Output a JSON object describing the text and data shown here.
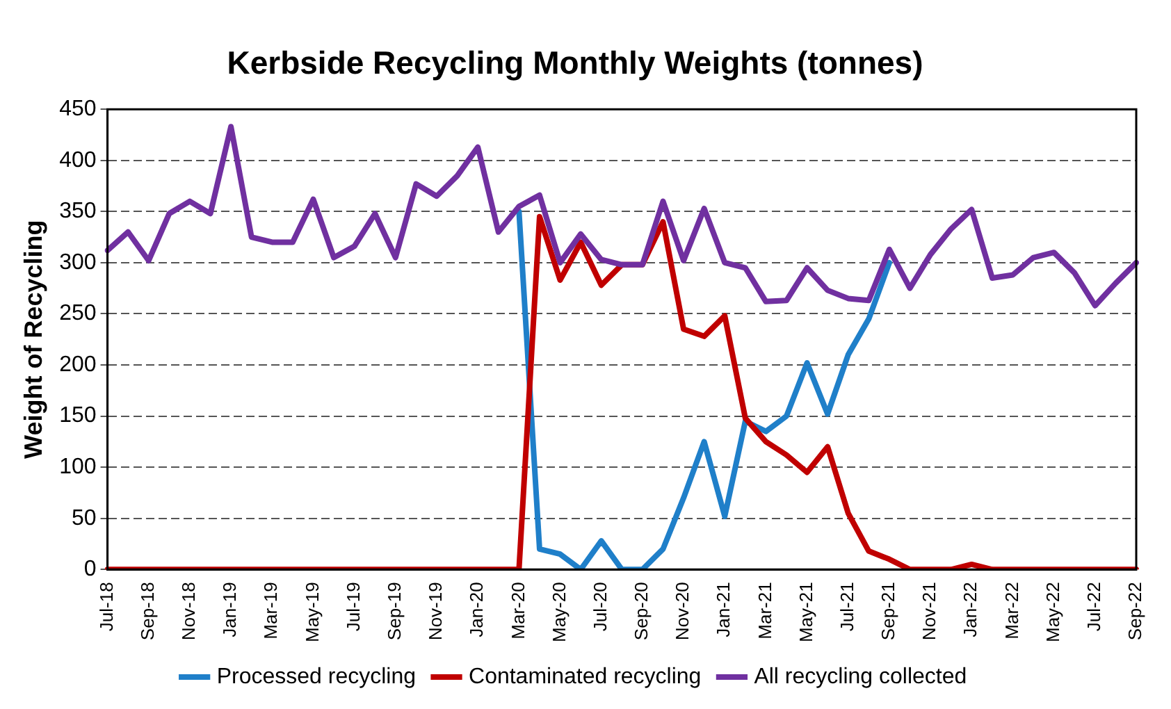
{
  "chart_data": {
    "type": "line",
    "title": "Kerbside Recycling Monthly Weights (tonnes)",
    "ylabel": "Weight of Recycling",
    "categories": [
      "Jul-18",
      null,
      "Sep-18",
      null,
      "Nov-18",
      null,
      "Jan-19",
      null,
      "Mar-19",
      null,
      "May-19",
      null,
      "Jul-19",
      null,
      "Sep-19",
      null,
      "Nov-19",
      null,
      "Jan-20",
      null,
      "Mar-20",
      null,
      "May-20",
      null,
      "Jul-20",
      null,
      "Sep-20",
      null,
      "Nov-20",
      null,
      "Jan-21",
      null,
      "Mar-21",
      null,
      "May-21",
      null,
      "Jul-21",
      null,
      "Sep-21",
      null,
      "Nov-21",
      null,
      "Jan-22",
      null,
      "Mar-22",
      null,
      "May-22",
      null,
      "Jul-22",
      null,
      "Sep-22"
    ],
    "series": [
      {
        "name": "Processed recycling",
        "color": "#1f7fc9",
        "values": [
          null,
          null,
          null,
          null,
          null,
          null,
          null,
          null,
          null,
          null,
          null,
          null,
          null,
          null,
          null,
          null,
          null,
          null,
          null,
          null,
          350,
          20,
          15,
          0,
          28,
          0,
          0,
          20,
          70,
          125,
          52,
          145,
          135,
          150,
          202,
          152,
          210,
          245,
          300,
          null,
          null,
          null,
          null,
          null,
          null,
          null,
          null,
          null,
          null,
          null,
          null
        ]
      },
      {
        "name": "Contaminated recycling",
        "color": "#c00000",
        "values": [
          0,
          0,
          0,
          0,
          0,
          0,
          0,
          0,
          0,
          0,
          0,
          0,
          0,
          0,
          0,
          0,
          0,
          0,
          0,
          0,
          0,
          345,
          283,
          320,
          278,
          298,
          298,
          340,
          235,
          228,
          248,
          148,
          125,
          112,
          95,
          120,
          55,
          18,
          10,
          0,
          0,
          0,
          5,
          0,
          0,
          0,
          0,
          0,
          0,
          0,
          0
        ]
      },
      {
        "name": "All recycling collected",
        "color": "#7030a0",
        "values": [
          312,
          330,
          302,
          348,
          360,
          348,
          433,
          325,
          320,
          320,
          362,
          305,
          316,
          348,
          305,
          377,
          365,
          385,
          413,
          330,
          355,
          366,
          300,
          328,
          303,
          298,
          298,
          360,
          302,
          353,
          300,
          295,
          262,
          263,
          295,
          273,
          265,
          263,
          313,
          275,
          308,
          333,
          352,
          285,
          288,
          305,
          310,
          290,
          258,
          280,
          300
        ]
      }
    ],
    "ylim": [
      0,
      450
    ],
    "yticks": [
      0,
      50,
      100,
      150,
      200,
      250,
      300,
      350,
      400,
      450
    ],
    "grid": "y",
    "legend": "bottom",
    "marker": "none",
    "line_style": "solid"
  }
}
